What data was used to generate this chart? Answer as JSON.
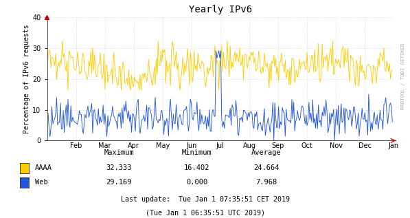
{
  "title": "Yearly IPv6",
  "ylabel": "Percentage of IPv6 requests",
  "xlabel_ticks": [
    "Feb",
    "Mar",
    "Apr",
    "May",
    "Jun",
    "Jul",
    "Aug",
    "Sep",
    "Oct",
    "Nov",
    "Dec",
    "Jan"
  ],
  "ylim": [
    0,
    40
  ],
  "yticks": [
    0,
    10,
    20,
    30,
    40
  ],
  "aaaa_color": "#ffcc00",
  "web_color": "#2255dd",
  "aaaa_max": 32.333,
  "aaaa_min": 16.402,
  "aaaa_avg": 24.664,
  "web_max": 29.169,
  "web_min": 0.0,
  "web_avg": 7.968,
  "last_update_line1": "Last update:  Tue Jan 1 07:35:51 CET 2019",
  "last_update_line2": "(Tue Jan 1 06:35:51 UTC 2019)",
  "bg_color": "#ffffff",
  "plot_bg_color": "#ffffff",
  "grid_color": "#cccccc",
  "rrdtool_text": "RRDTOOL / TOBI OETIKER",
  "n_points": 365,
  "title_fontsize": 10,
  "axis_fontsize": 7,
  "legend_fontsize": 7.5,
  "tick_fontsize": 7
}
